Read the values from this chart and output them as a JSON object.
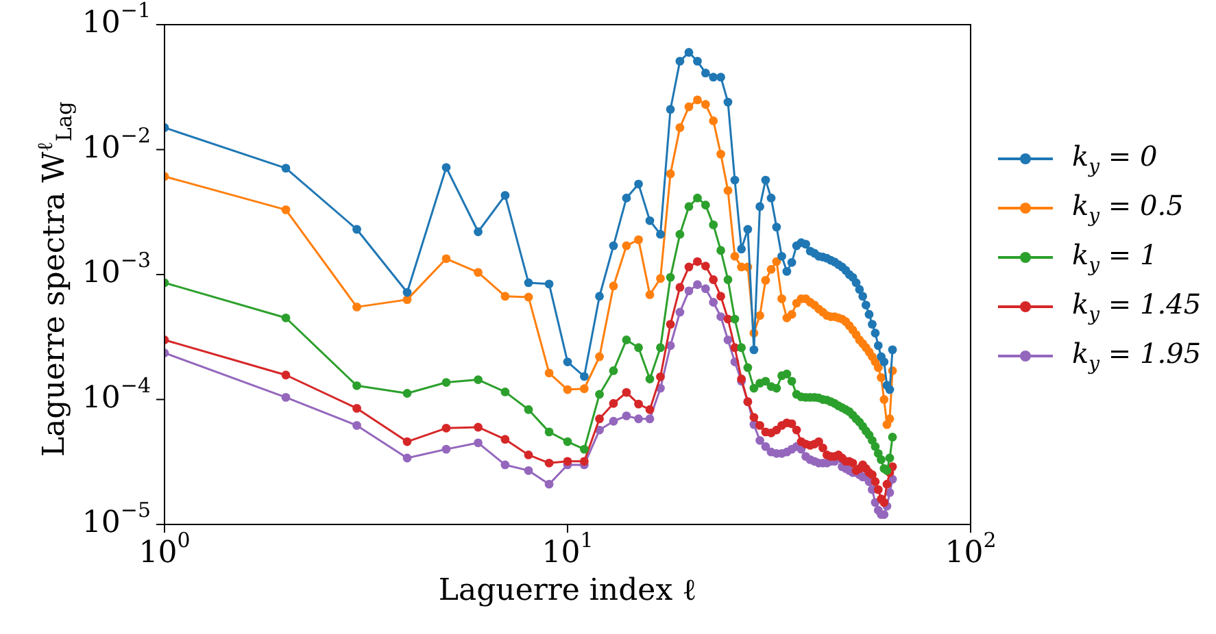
{
  "chart_data": {
    "type": "line",
    "xlabel": "Laguerre index ℓ",
    "ylabel": "Laguerre spectra W$^{ℓ}$$_{Lag}$",
    "log": "xy",
    "marker": "circle",
    "legend": "right",
    "xlim": [
      1,
      100
    ],
    "xticks": [
      {
        "value": 1,
        "label": "10$^{0}$"
      },
      {
        "value": 10,
        "label": "10$^{1}$"
      },
      {
        "value": 100,
        "label": "10$^{2}$"
      }
    ],
    "ylim": [
      1e-05,
      0.1
    ],
    "yticks": [
      {
        "value": 1e-05,
        "label": "10$^{−5}$"
      },
      {
        "value": 0.0001,
        "label": "10$^{−4}$"
      },
      {
        "value": 0.001,
        "label": "10$^{−3}$"
      },
      {
        "value": 0.01,
        "label": "10$^{−2}$"
      },
      {
        "value": 0.1,
        "label": "10$^{−1}$"
      }
    ],
    "x": [
      1,
      2,
      3,
      4,
      5,
      6,
      7,
      8,
      9,
      10,
      11,
      12,
      13,
      14,
      15,
      16,
      17,
      18,
      19,
      20,
      21,
      22,
      23,
      24,
      25,
      26,
      27,
      28,
      29,
      30,
      31,
      32,
      33,
      34,
      35,
      36,
      37,
      38,
      39,
      40,
      41,
      42,
      43,
      44,
      45,
      46,
      47,
      48,
      49,
      50,
      51,
      52,
      53,
      54,
      55,
      56,
      57,
      58,
      59,
      60,
      61,
      62,
      63,
      64
    ],
    "series": [
      {
        "name": "k$_{y}$ = 0",
        "color": "#1f77b4",
        "values": [
          0.015,
          0.0071,
          0.0023,
          0.00072,
          0.0072,
          0.0022,
          0.0043,
          0.00086,
          0.00084,
          0.0002,
          0.000153,
          0.00067,
          0.0017,
          0.0041,
          0.0053,
          0.0027,
          0.0021,
          0.021,
          0.051,
          0.06,
          0.051,
          0.041,
          0.038,
          0.038,
          0.024,
          0.0057,
          0.0016,
          0.0023,
          0.00025,
          0.0035,
          0.0057,
          0.0041,
          0.0024,
          0.0014,
          0.00106,
          0.00125,
          0.0017,
          0.0018,
          0.00175,
          0.00154,
          0.00148,
          0.0014,
          0.00138,
          0.00135,
          0.0013,
          0.00126,
          0.0012,
          0.00115,
          0.00108,
          0.001,
          0.00095,
          0.00086,
          0.00076,
          0.00067,
          0.00057,
          0.00048,
          0.0004,
          0.00034,
          0.00027,
          0.00022,
          0.0002,
          0.00013,
          0.00012,
          0.00025
        ]
      },
      {
        "name": "k$_{y}$ = 0.5",
        "color": "#ff7f0e",
        "values": [
          0.0061,
          0.0033,
          0.00055,
          0.00063,
          0.00134,
          0.00104,
          0.00067,
          0.00066,
          0.000163,
          0.00012,
          0.000122,
          0.00022,
          0.00081,
          0.0017,
          0.0019,
          0.00069,
          0.00093,
          0.0064,
          0.015,
          0.022,
          0.025,
          0.023,
          0.017,
          0.0092,
          0.0047,
          0.0014,
          0.00115,
          0.00115,
          0.00034,
          0.00047,
          0.0009,
          0.0011,
          0.00127,
          0.00064,
          0.00045,
          0.00048,
          0.00059,
          0.00064,
          0.00064,
          0.0006,
          0.00057,
          0.00053,
          0.0005,
          0.00047,
          0.00046,
          0.00046,
          0.00045,
          0.00044,
          0.00042,
          0.00039,
          0.00036,
          0.00033,
          0.0003,
          0.00028,
          0.00026,
          0.00024,
          0.00022,
          0.0002,
          0.00018,
          0.00015,
          0.0001,
          6.3e-05,
          7e-05,
          0.00017
        ]
      },
      {
        "name": "k$_{y}$ = 1",
        "color": "#2ca02c",
        "values": [
          0.00086,
          0.00045,
          0.000129,
          0.000112,
          0.000137,
          0.000144,
          0.000115,
          8.3e-05,
          5.5e-05,
          4.6e-05,
          4e-05,
          0.00011,
          0.00017,
          0.0003,
          0.00026,
          0.000146,
          0.00026,
          0.00095,
          0.0021,
          0.0035,
          0.0041,
          0.0036,
          0.0025,
          0.00156,
          0.00091,
          0.00044,
          0.00026,
          0.00018,
          0.000123,
          0.000135,
          0.00014,
          0.000127,
          0.000123,
          0.000155,
          0.00016,
          0.00014,
          0.00011,
          0.000105,
          0.000104,
          0.000104,
          0.000104,
          0.000103,
          0.0001,
          9.9e-05,
          9.6e-05,
          9.3e-05,
          8.9e-05,
          8.6e-05,
          8.3e-05,
          8e-05,
          7.5e-05,
          7e-05,
          6.6e-05,
          6.1e-05,
          5.6e-05,
          5.2e-05,
          4.7e-05,
          4.2e-05,
          3.7e-05,
          3.3e-05,
          2.8e-05,
          2.7e-05,
          3.4e-05,
          5e-05
        ]
      },
      {
        "name": "k$_{y}$ = 1.45",
        "color": "#d62728",
        "values": [
          0.0003,
          0.000157,
          8.5e-05,
          4.6e-05,
          5.9e-05,
          6e-05,
          4.8e-05,
          3.6e-05,
          3.1e-05,
          3.2e-05,
          3.2e-05,
          7e-05,
          9.3e-05,
          0.000114,
          9.2e-05,
          8.3e-05,
          0.000152,
          0.0004,
          0.00079,
          0.00115,
          0.00127,
          0.00117,
          0.00091,
          0.00067,
          0.00044,
          0.00026,
          0.000146,
          9.6e-05,
          7.2e-05,
          6.2e-05,
          5.5e-05,
          5.4e-05,
          5.7e-05,
          6.2e-05,
          6.5e-05,
          6.4e-05,
          5.7e-05,
          4.6e-05,
          4.4e-05,
          4.3e-05,
          4.4e-05,
          4.6e-05,
          4.1e-05,
          3.6e-05,
          3.5e-05,
          3.5e-05,
          3.6e-05,
          3.4e-05,
          3.2e-05,
          3.2e-05,
          3.1e-05,
          2.7e-05,
          2.8e-05,
          3e-05,
          2.8e-05,
          2.6e-05,
          2.5e-05,
          2.2e-05,
          1.9e-05,
          1.6e-05,
          1.5e-05,
          2.1e-05,
          2.6e-05,
          2.9e-05
        ]
      },
      {
        "name": "k$_{y}$ = 1.95",
        "color": "#9467bd",
        "values": [
          0.000236,
          0.000104,
          6.2e-05,
          3.4e-05,
          4e-05,
          4.5e-05,
          3e-05,
          2.7e-05,
          2.1e-05,
          3e-05,
          3e-05,
          5.7e-05,
          6.7e-05,
          7.4e-05,
          7e-05,
          7e-05,
          0.000123,
          0.00027,
          0.0005,
          0.00074,
          0.00083,
          0.00077,
          0.0006,
          0.00046,
          0.0003,
          0.0002,
          0.00014,
          9.6e-05,
          6.3e-05,
          4.7e-05,
          4.2e-05,
          3.8e-05,
          3.7e-05,
          3.7e-05,
          3.8e-05,
          4e-05,
          4.2e-05,
          4e-05,
          3.5e-05,
          3.3e-05,
          3.2e-05,
          3.1e-05,
          3.1e-05,
          3.1e-05,
          3.2e-05,
          3.2e-05,
          3.4e-05,
          2.9e-05,
          2.8e-05,
          2.7e-05,
          2.6e-05,
          2.6e-05,
          2.5e-05,
          2.4e-05,
          2.4e-05,
          2.2e-05,
          1.9e-05,
          1.5e-05,
          1.3e-05,
          1.2e-05,
          1.2e-05,
          1.4e-05,
          1.8e-05,
          2.3e-05
        ]
      }
    ]
  }
}
